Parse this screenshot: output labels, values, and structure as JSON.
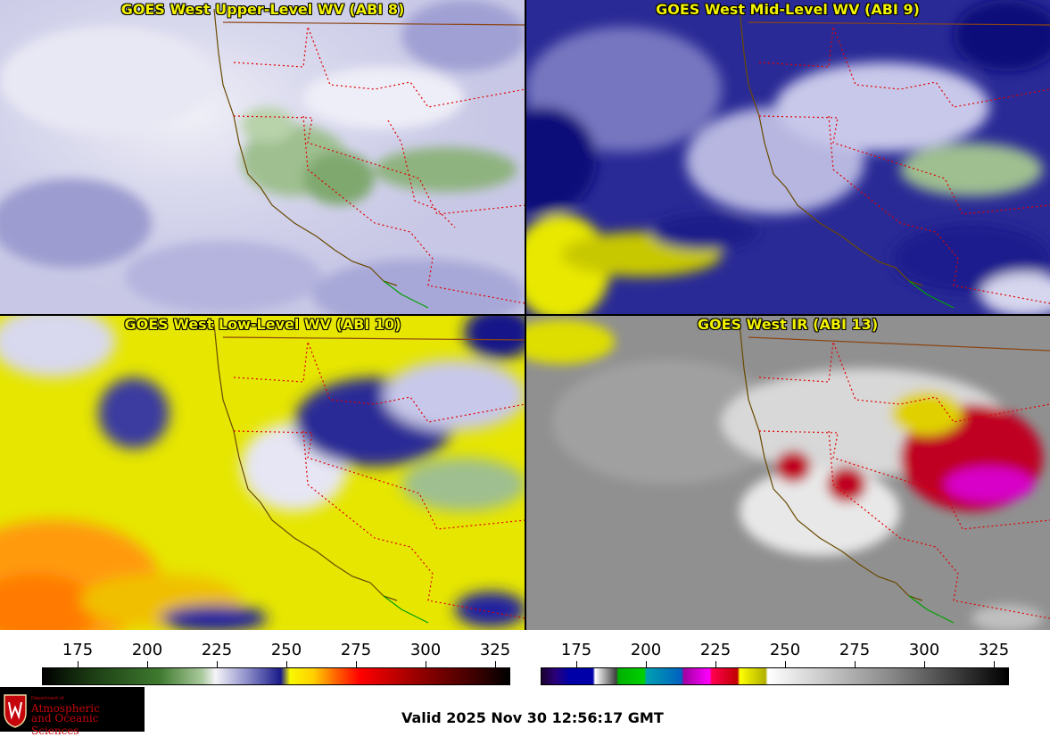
{
  "panels": [
    {
      "title": "GOES West Upper-Level WV (ABI 8)"
    },
    {
      "title": "GOES West Mid-Level WV (ABI 9)"
    },
    {
      "title": "GOES West Low-Level WV (ABI 10)"
    },
    {
      "title": "GOES West IR (ABI 13)"
    }
  ],
  "colorbars": [
    {
      "ticks": [
        "175",
        "200",
        "225",
        "250",
        "275",
        "300",
        "325"
      ]
    },
    {
      "ticks": [
        "175",
        "200",
        "225",
        "250",
        "275",
        "300",
        "325"
      ]
    }
  ],
  "logo": {
    "dept": "Department of",
    "line1": "Atmospheric",
    "line2": "and Oceanic Sciences"
  },
  "valid_text": "Valid 2025 Nov 30 12:56:17 GMT"
}
